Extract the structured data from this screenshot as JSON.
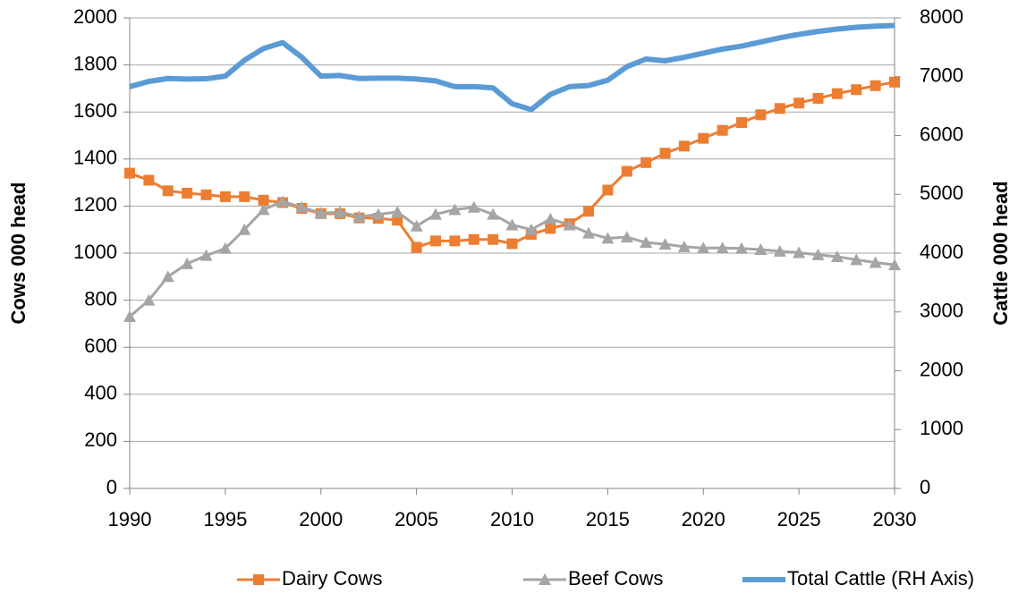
{
  "chart_data": {
    "type": "line",
    "x": [
      1990,
      1991,
      1992,
      1993,
      1994,
      1995,
      1996,
      1997,
      1998,
      1999,
      2000,
      2001,
      2002,
      2003,
      2004,
      2005,
      2006,
      2007,
      2008,
      2009,
      2010,
      2011,
      2012,
      2013,
      2014,
      2015,
      2016,
      2017,
      2018,
      2019,
      2020,
      2021,
      2022,
      2023,
      2024,
      2025,
      2026,
      2027,
      2028,
      2029,
      2030
    ],
    "xlim": [
      1990,
      2030
    ],
    "xticks": [
      1990,
      1995,
      2000,
      2005,
      2010,
      2015,
      2020,
      2025,
      2030
    ],
    "ylim": [
      0,
      2000
    ],
    "yticks": [
      0,
      200,
      400,
      600,
      800,
      1000,
      1200,
      1400,
      1600,
      1800,
      2000
    ],
    "y2lim": [
      0,
      8000
    ],
    "y2ticks": [
      0,
      1000,
      2000,
      3000,
      4000,
      5000,
      6000,
      7000,
      8000
    ],
    "y_label": "Cows 000 head",
    "y2_label": "Cattle  000 head",
    "grid": true,
    "legend": "bottom",
    "series": [
      {
        "name": "Dairy Cows",
        "color": "#ed7d31",
        "marker": "square",
        "values": [
          1340,
          1310,
          1265,
          1255,
          1248,
          1240,
          1240,
          1225,
          1215,
          1190,
          1168,
          1168,
          1150,
          1148,
          1140,
          1025,
          1052,
          1052,
          1058,
          1058,
          1040,
          1080,
          1105,
          1125,
          1178,
          1268,
          1348,
          1385,
          1425,
          1455,
          1488,
          1522,
          1555,
          1588,
          1615,
          1638,
          1658,
          1678,
          1695,
          1712,
          1727
        ]
      },
      {
        "name": "Beef Cows",
        "color": "#a5a5a5",
        "marker": "triangle",
        "values": [
          730,
          800,
          900,
          955,
          990,
          1020,
          1100,
          1185,
          1220,
          1195,
          1170,
          1175,
          1155,
          1165,
          1175,
          1115,
          1165,
          1185,
          1195,
          1165,
          1120,
          1100,
          1145,
          1120,
          1085,
          1063,
          1068,
          1045,
          1038,
          1027,
          1022,
          1022,
          1020,
          1015,
          1008,
          1002,
          993,
          985,
          972,
          960,
          950
        ]
      },
      {
        "name": "Total Cattle (RH Axis)",
        "color": "#5b9bd5",
        "axis": "y2",
        "values": [
          6830,
          6920,
          6970,
          6960,
          6965,
          7010,
          7280,
          7480,
          7580,
          7330,
          7010,
          7020,
          6970,
          6975,
          6975,
          6960,
          6930,
          6830,
          6830,
          6810,
          6540,
          6440,
          6700,
          6830,
          6850,
          6940,
          7170,
          7300,
          7270,
          7330,
          7400,
          7470,
          7520,
          7590,
          7660,
          7720,
          7770,
          7810,
          7840,
          7860,
          7870
        ]
      }
    ]
  }
}
